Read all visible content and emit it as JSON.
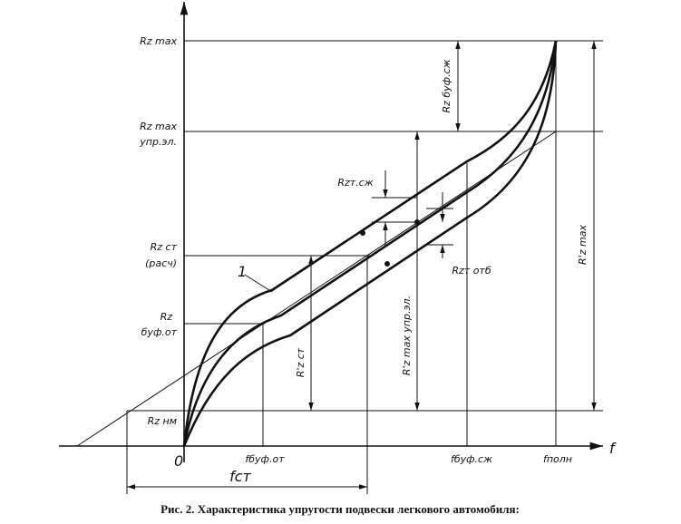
{
  "left_labels": [
    [
      "Rz max"
    ],
    [
      "Rz max",
      "упр.эл."
    ],
    [
      "Rz ст",
      "(расч)"
    ],
    [
      "Rz",
      "буф.от"
    ],
    [
      "Rz нм"
    ]
  ],
  "dimension_labels": {
    "rz_buf_sj": "Rz буф.сж",
    "rz_t_sj": "Rzт.сж",
    "rz_t_otb": "Rzт отб",
    "rz_prime_st": "R'z ст",
    "rz_prime_max_upr": "R'z max упр.эл.",
    "rz_prime_max": "R'z max"
  },
  "curve_label": "1",
  "x_labels": {
    "origin": "0",
    "f_buf_ot": "fбуф.от",
    "f_buf_sj": "fбуф.сж",
    "f_poln": "fполн",
    "f_axis": "f",
    "f_st": "fст"
  },
  "caption": "Рис. 2. Характеристика упругости подвески легкового автомобиля:"
}
